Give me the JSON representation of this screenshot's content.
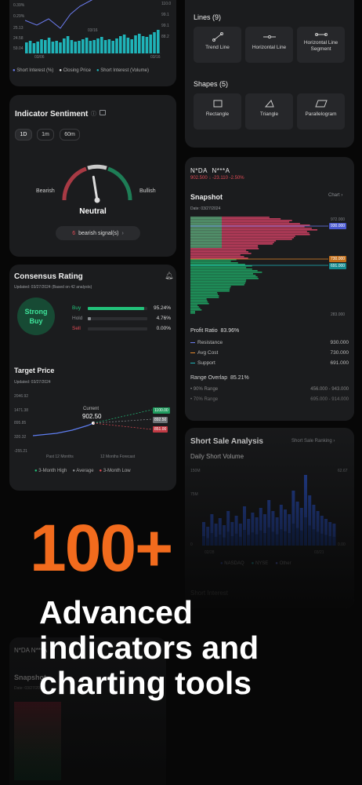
{
  "top_chart": {
    "y_labels_left": [
      "0.39%",
      "0.29%",
      "25.13",
      "24.58",
      "59.04"
    ],
    "y_labels_right": [
      "110.0",
      "99.1",
      "99.1",
      "88.2"
    ],
    "x_labels": [
      "03/06",
      "03/16",
      "03/16"
    ],
    "legend": [
      "Short Interest (%)",
      "Closing Price",
      "Short Interest (Volume)"
    ],
    "colors": {
      "interest": "#6c7cf0",
      "closing": "#e8e8e8",
      "volume": "#1fb3b8"
    }
  },
  "sentiment": {
    "title": "Indicator Sentiment",
    "tabs": [
      "1D",
      "1m",
      "60m"
    ],
    "left_label": "Bearish",
    "right_label": "Bullish",
    "state": "Neutral",
    "gauge_value": 0.45,
    "signal_count": "6",
    "signal_text": "bearish signal(s)",
    "colors": {
      "bear": "#a83a44",
      "bull": "#1e7d56",
      "needle": "#dcdcdc"
    }
  },
  "consensus": {
    "title": "Consensus Rating",
    "updated": "Updated: 03/27/2024 (Based on 42 analysts)",
    "badge_line1": "Strong",
    "badge_line2": "Buy",
    "rows": [
      {
        "label": "Buy",
        "pct": "95.24%",
        "value": 95.24,
        "color": "#22c17a"
      },
      {
        "label": "Hold",
        "pct": "4.76%",
        "value": 4.76,
        "color": "#8a8d91"
      },
      {
        "label": "Sell",
        "pct": "0.00%",
        "value": 0,
        "color": "#e04b55"
      }
    ]
  },
  "target": {
    "title": "Target Price",
    "updated": "Updated: 03/27/2024",
    "y_labels": [
      "2046.92",
      "1471.38",
      "895.85",
      "320.32",
      "-255.21"
    ],
    "current_label": "Current",
    "current_value": "902.50",
    "tags": [
      {
        "text": "1100.00",
        "color": "#1f9a5e"
      },
      {
        "text": "892.50",
        "color": "#6e7276"
      },
      {
        "text": "851.00",
        "color": "#c13a44"
      }
    ],
    "x_labels": [
      "Past 12 Months",
      "12 Months Forecast"
    ],
    "legend": [
      {
        "text": "3-Month High",
        "color": "#22c17a"
      },
      {
        "text": "Average",
        "color": "#8a8d91"
      },
      {
        "text": "3-Month Low",
        "color": "#e04b55"
      }
    ]
  },
  "tools": {
    "lines_title": "Lines (9)",
    "lines": [
      "Trend Line",
      "Horizontal Line",
      "Horizontal Line Segment"
    ],
    "shapes_title": "Shapes (5)",
    "shapes": [
      "Rectangle",
      "Triangle",
      "Parallelogram"
    ]
  },
  "snapshot": {
    "ticker": "N*DA",
    "name": "N***A",
    "price": "902.500",
    "change": "-23.110",
    "change_pct": "-2.50%",
    "title": "Snapshot",
    "chart_link": "Chart",
    "date": "Date: 03/27/2024",
    "price_max": "972.000",
    "tag_top": "930.000",
    "tag_mid": "730.000",
    "tag_low": "691.000",
    "price_min": "283.000",
    "profit_label": "Profit Ratio",
    "profit_value": "83.96%",
    "rows": [
      {
        "label": "Resistance",
        "value": "930.000",
        "color": "#6c7cf0"
      },
      {
        "label": "Avg Cost",
        "value": "730.000",
        "color": "#e6892b"
      },
      {
        "label": "Support",
        "value": "691.000",
        "color": "#1fb3b8"
      }
    ],
    "overlap_label": "Range Overlap",
    "overlap_value": "85.21%",
    "ranges": [
      {
        "label": "90% Range",
        "value": "456.000 - 943.000"
      },
      {
        "label": "70% Range",
        "value": "695.000 - 914.000"
      }
    ]
  },
  "short_sale": {
    "title": "Short Sale Analysis",
    "link": "Short Sale Ranking",
    "subtitle": "Daily Short Volume",
    "y_labels": [
      "150M",
      "75M",
      "0"
    ],
    "right_labels": [
      "62.67",
      "0.00"
    ],
    "x_labels": [
      "02/28",
      "03/21"
    ],
    "legend": [
      "NASDAQ",
      "NYSE",
      "Other"
    ],
    "footer": "Short Interest"
  },
  "ghost": {
    "ticker": "N*DA N***A",
    "title": "Snapshot",
    "date": "Date: 03/27/2024"
  },
  "headline": {
    "big": "100+",
    "line1": "Advanced",
    "line2": "indicators and",
    "line3": "charting tools",
    "accent": "#f26b1d"
  }
}
